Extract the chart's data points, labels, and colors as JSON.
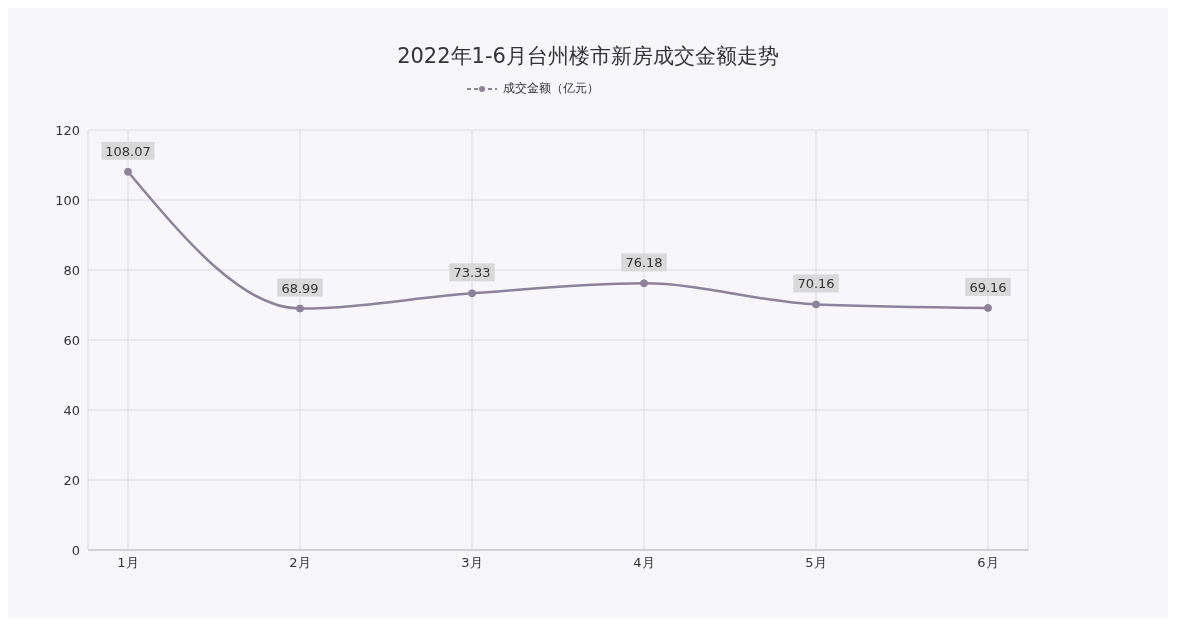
{
  "chart_data": {
    "type": "line",
    "title": "2022年1-6月台州楼市新房成交金额走势",
    "categories": [
      "1月",
      "2月",
      "3月",
      "4月",
      "5月",
      "6月"
    ],
    "series": [
      {
        "name": "成交金额（亿元）",
        "color": "#8c8299",
        "values": [
          108.07,
          68.99,
          73.33,
          76.18,
          70.16,
          69.16
        ]
      }
    ],
    "ylim": [
      0,
      120
    ],
    "yticks": [
      0,
      20,
      40,
      60,
      80,
      100,
      120
    ],
    "grid": true,
    "legend": "top",
    "marker": "circle",
    "line_style": "solid",
    "data_labels": true
  }
}
